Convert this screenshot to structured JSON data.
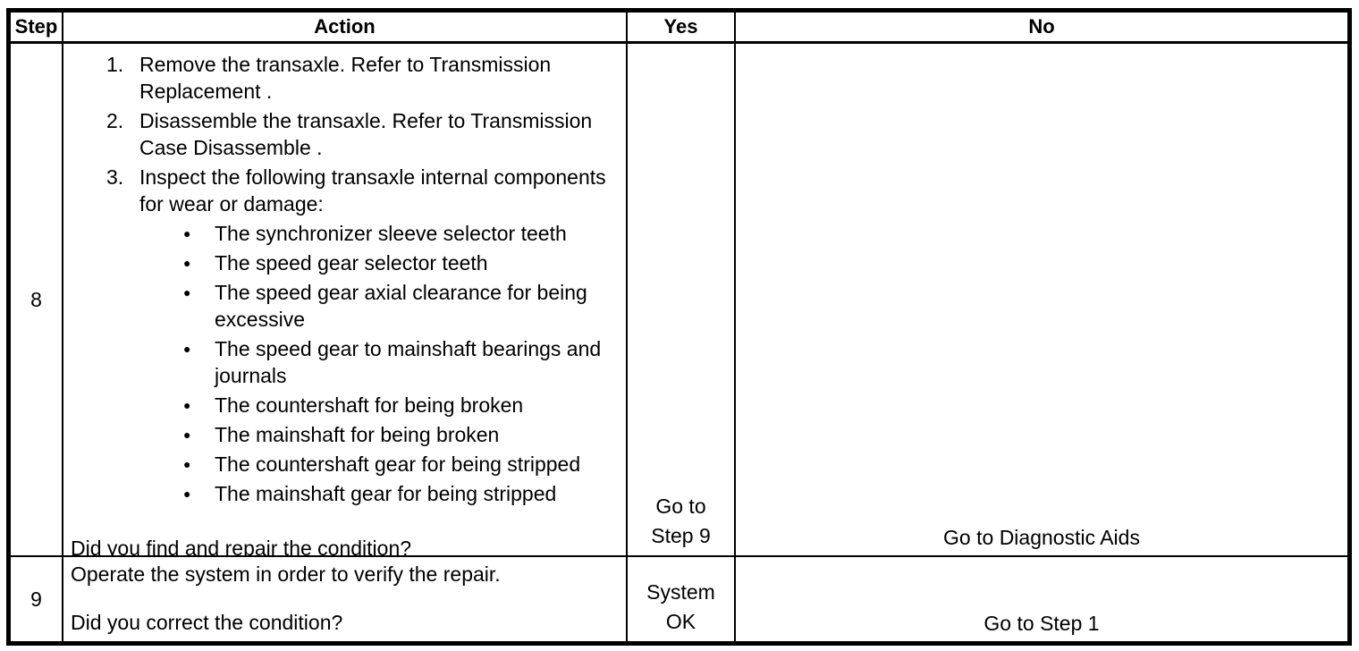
{
  "colors": {
    "ink": "#000000",
    "paper": "#ffffff"
  },
  "bullet_icon": "●",
  "header": {
    "step": "Step",
    "action": "Action",
    "yes": "Yes",
    "no": "No"
  },
  "row8": {
    "step": "8",
    "numbered": [
      {
        "num": "1.",
        "text": "Remove the transaxle. Refer to Transmission Replacement ."
      },
      {
        "num": "2.",
        "text": "Disassemble the transaxle. Refer to Transmission Case Disassemble ."
      },
      {
        "num": "3.",
        "text": "Inspect the following transaxle internal components for wear or damage:"
      }
    ],
    "bullets": [
      "The synchronizer sleeve selector teeth",
      "The speed gear selector teeth",
      "The speed gear axial clearance for being excessive",
      "The speed gear to mainshaft bearings and journals",
      "The countershaft for being broken",
      "The mainshaft for being broken",
      "The countershaft gear for being stripped",
      "The mainshaft gear for being stripped"
    ],
    "question": "Did you find and repair the condition?",
    "yes_lines": [
      "Go to",
      "Step 9"
    ],
    "no": "Go to Diagnostic Aids"
  },
  "row9": {
    "step": "9",
    "statement": "Operate the system in order to verify the repair.",
    "question": "Did you correct the condition?",
    "yes_lines": [
      "System",
      "OK"
    ],
    "no": "Go to Step 1"
  }
}
